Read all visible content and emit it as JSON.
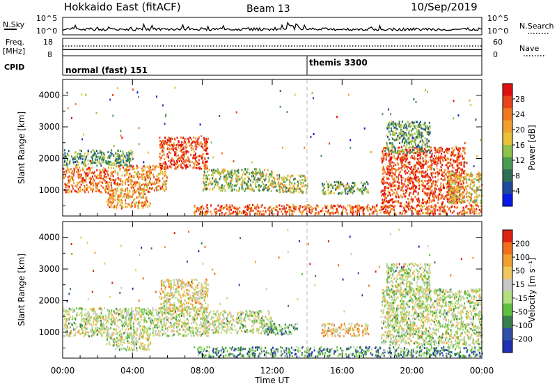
{
  "header": {
    "station": "Hokkaido East (fitACF)",
    "beam": "Beam 13",
    "date": "10/Sep/2019"
  },
  "top_panel": {
    "left_labels": [
      "N.Sky",
      "Freq.",
      "[MHz]",
      "CPID"
    ],
    "nsky_ticks": [
      "10^5",
      "10^0"
    ],
    "nsearch_ticks": [
      "10^5",
      "10^0"
    ],
    "freq_ticks": [
      "18",
      "8"
    ],
    "nave_ticks": [
      "60",
      "0"
    ],
    "right_labels": [
      "N.Search",
      "Nave"
    ],
    "cpid_segments": [
      {
        "label": "normal (fast) 151",
        "start_hour": 0
      },
      {
        "label": "themis 3300",
        "start_hour": 14
      }
    ]
  },
  "chart_data": [
    {
      "type": "heatmap",
      "title": "",
      "xlabel": "Time UT",
      "ylabel": "Slant Range [km]",
      "x_ticks": [
        "00:00",
        "04:00",
        "08:00",
        "12:00",
        "16:00",
        "20:00",
        "00:00"
      ],
      "y_ticks": [
        1000,
        2000,
        3000,
        4000
      ],
      "xlim_hours": [
        0,
        24
      ],
      "ylim_km": [
        180,
        4500
      ],
      "colorbar": {
        "label": "Power [dB]",
        "ticks": [
          "4",
          "8",
          "12",
          "16",
          "20",
          "24",
          "28"
        ],
        "colors": [
          "#0a18e8",
          "#20489c",
          "#2f6e54",
          "#4c9a52",
          "#8ec24a",
          "#e8c23a",
          "#f0a030",
          "#f07a22",
          "#e8451c",
          "#e01010"
        ]
      },
      "regions": [
        {
          "t0": 0.0,
          "t1": 3.0,
          "r0": 950,
          "r1": 1750,
          "v": 0.75
        },
        {
          "t0": 3.0,
          "t1": 6.0,
          "r0": 1000,
          "r1": 1800,
          "v": 0.7
        },
        {
          "t0": 5.5,
          "t1": 8.3,
          "r0": 1700,
          "r1": 2700,
          "v": 0.85
        },
        {
          "t0": 2.5,
          "t1": 5.0,
          "r0": 450,
          "r1": 1000,
          "v": 0.7
        },
        {
          "t0": 0.0,
          "t1": 4.0,
          "r0": 1800,
          "r1": 2300,
          "v": 0.35
        },
        {
          "t0": 8.0,
          "t1": 12.0,
          "r0": 1000,
          "r1": 1700,
          "v": 0.45
        },
        {
          "t0": 12.0,
          "t1": 14.0,
          "r0": 950,
          "r1": 1500,
          "v": 0.5
        },
        {
          "t0": 14.8,
          "t1": 17.5,
          "r0": 900,
          "r1": 1300,
          "v": 0.4
        },
        {
          "t0": 7.5,
          "t1": 24.0,
          "r0": 250,
          "r1": 560,
          "v": 0.8
        },
        {
          "t0": 18.2,
          "t1": 23.0,
          "r0": 600,
          "r1": 2400,
          "v": 0.85
        },
        {
          "t0": 18.5,
          "t1": 21.0,
          "r0": 2200,
          "r1": 3200,
          "v": 0.35
        },
        {
          "t0": 22.0,
          "t1": 24.0,
          "r0": 600,
          "r1": 1600,
          "v": 0.6
        }
      ]
    },
    {
      "type": "heatmap",
      "title": "",
      "xlabel": "Time UT",
      "ylabel": "Slant Range [km]",
      "x_ticks": [
        "00:00",
        "04:00",
        "08:00",
        "12:00",
        "16:00",
        "20:00",
        "00:00"
      ],
      "y_ticks": [
        1000,
        2000,
        3000,
        4000
      ],
      "xlim_hours": [
        0,
        24
      ],
      "ylim_km": [
        180,
        4500
      ],
      "colorbar": {
        "label": "Velocity [m s⁻¹]",
        "ticks": [
          "200",
          "100",
          "50",
          "15",
          "-15",
          "-50",
          "-100",
          "-200"
        ],
        "colors": [
          "#2030b0",
          "#3050a8",
          "#3a7e50",
          "#60c040",
          "#b0e080",
          "#c8c8c8",
          "#f0c860",
          "#f0a030",
          "#f07020",
          "#e02010"
        ]
      },
      "regions": [
        {
          "t0": 0.0,
          "t1": 8.3,
          "r0": 900,
          "r1": 1800,
          "v": 0.5
        },
        {
          "t0": 5.5,
          "t1": 8.3,
          "r0": 1700,
          "r1": 2700,
          "v": 0.6
        },
        {
          "t0": 2.5,
          "t1": 5.0,
          "r0": 450,
          "r1": 1000,
          "v": 0.5
        },
        {
          "t0": 8.0,
          "t1": 12.0,
          "r0": 1000,
          "r1": 1700,
          "v": 0.5
        },
        {
          "t0": 11.5,
          "t1": 13.5,
          "r0": 950,
          "r1": 1300,
          "v": 0.3
        },
        {
          "t0": 14.8,
          "t1": 17.5,
          "r0": 900,
          "r1": 1300,
          "v": 0.65
        },
        {
          "t0": 7.5,
          "t1": 24.0,
          "r0": 250,
          "r1": 560,
          "v": 0.3
        },
        {
          "t0": 18.2,
          "t1": 24.0,
          "r0": 600,
          "r1": 2400,
          "v": 0.5
        },
        {
          "t0": 18.5,
          "t1": 21.0,
          "r0": 2200,
          "r1": 3200,
          "v": 0.5
        }
      ]
    }
  ]
}
